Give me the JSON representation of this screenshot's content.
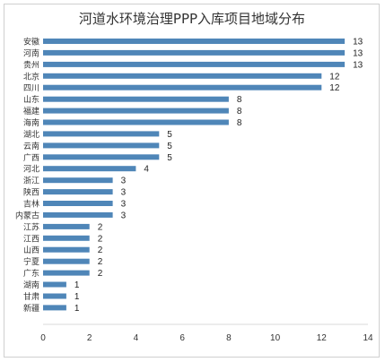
{
  "chart_data": {
    "type": "bar",
    "orientation": "horizontal",
    "title": "河道水环境治理PPP入库项目地域分布",
    "categories": [
      "安徽",
      "河南",
      "贵州",
      "北京",
      "四川",
      "山东",
      "福建",
      "海南",
      "湖北",
      "云南",
      "广西",
      "河北",
      "浙江",
      "陕西",
      "吉林",
      "内蒙古",
      "江苏",
      "江西",
      "山西",
      "宁夏",
      "广东",
      "湖南",
      "甘肃",
      "新疆"
    ],
    "values": [
      13,
      13,
      13,
      12,
      12,
      8,
      8,
      8,
      5,
      5,
      5,
      4,
      3,
      3,
      3,
      3,
      2,
      2,
      2,
      2,
      2,
      1,
      1,
      1
    ],
    "xlim": [
      0,
      14
    ],
    "xticks": [
      0,
      2,
      4,
      6,
      8,
      10,
      12,
      14
    ],
    "xticks_labels": [
      "0",
      "2",
      "4",
      "6",
      "8",
      "10",
      "12",
      "14"
    ],
    "xlabel": "",
    "ylabel": "",
    "grid": false,
    "legend": "none",
    "bar_color": "#4f86b8"
  }
}
